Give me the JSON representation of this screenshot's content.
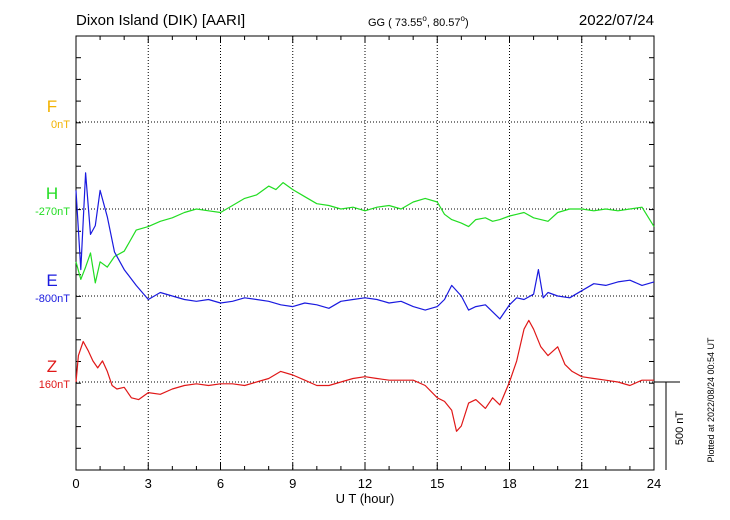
{
  "header": {
    "station": "Dixon Island (DIK)  [AARI]",
    "coords_prefix": "GG ( 73.55",
    "coords_mid": ",  80.57",
    "coords_suffix": ")",
    "date": "2022/07/24"
  },
  "footer_note": "Plotted at 2022/08/24 00:54 UT",
  "chart_data": {
    "type": "line",
    "xlabel": "U T (hour)",
    "xlim": [
      0,
      24
    ],
    "xticks": [
      "0",
      "3",
      "6",
      "9",
      "12",
      "15",
      "18",
      "21",
      "24"
    ],
    "scale_label": "500 nT",
    "grid": true,
    "series": [
      {
        "name": "F",
        "baseline": "0nT",
        "color": "#f2b200",
        "values": []
      },
      {
        "name": "H",
        "baseline": "-270nT",
        "color": "#22dd22",
        "x": [
          0,
          0.2,
          0.4,
          0.6,
          0.8,
          1.0,
          1.3,
          1.6,
          2.0,
          2.5,
          3.0,
          3.5,
          4.0,
          4.5,
          5.0,
          5.5,
          6.0,
          6.5,
          7.0,
          7.5,
          8.0,
          8.3,
          8.6,
          9.0,
          9.5,
          10.0,
          10.5,
          11.0,
          11.5,
          12.0,
          12.5,
          13.0,
          13.5,
          14.0,
          14.5,
          15.0,
          15.3,
          15.6,
          16.0,
          16.3,
          16.6,
          17.0,
          17.3,
          17.6,
          18.0,
          18.3,
          18.6,
          19.0,
          19.3,
          19.6,
          20.0,
          20.5,
          21.0,
          21.5,
          22.0,
          22.5,
          23.0,
          23.5,
          24.0
        ],
        "values": [
          -300,
          -400,
          -330,
          -250,
          -420,
          -300,
          -330,
          -270,
          -240,
          -120,
          -100,
          -70,
          -50,
          -20,
          0,
          -10,
          -20,
          20,
          60,
          80,
          130,
          110,
          150,
          110,
          70,
          30,
          20,
          0,
          10,
          -10,
          10,
          20,
          0,
          40,
          60,
          40,
          -30,
          -60,
          -80,
          -100,
          -60,
          -50,
          -70,
          -60,
          -40,
          -30,
          -20,
          -50,
          -60,
          -70,
          -20,
          0,
          0,
          -10,
          0,
          -10,
          0,
          10,
          -100
        ]
      },
      {
        "name": "E",
        "baseline": "-800nT",
        "color": "#1a1adf",
        "x": [
          0,
          0.2,
          0.4,
          0.6,
          0.8,
          1.0,
          1.3,
          1.6,
          2.0,
          2.5,
          3.0,
          3.5,
          4.0,
          4.5,
          5.0,
          5.5,
          6.0,
          6.5,
          7.0,
          7.5,
          8.0,
          8.5,
          9.0,
          9.5,
          10.0,
          10.5,
          11.0,
          11.5,
          12.0,
          12.5,
          13.0,
          13.5,
          14.0,
          14.5,
          15.0,
          15.3,
          15.6,
          16.0,
          16.3,
          16.6,
          17.0,
          17.3,
          17.6,
          18.0,
          18.3,
          18.6,
          19.0,
          19.2,
          19.4,
          19.6,
          20.0,
          20.5,
          21.0,
          21.5,
          22.0,
          22.5,
          23.0,
          23.5,
          24.0
        ],
        "values": [
          600,
          150,
          700,
          350,
          400,
          600,
          450,
          250,
          150,
          60,
          -20,
          20,
          0,
          -20,
          -30,
          -20,
          -40,
          -30,
          -10,
          -20,
          -30,
          -50,
          -60,
          -40,
          -50,
          -70,
          -30,
          -20,
          -10,
          -20,
          -40,
          -30,
          -60,
          -80,
          -60,
          -20,
          60,
          0,
          -80,
          -60,
          -50,
          -90,
          -130,
          -50,
          -10,
          -20,
          10,
          150,
          -10,
          20,
          0,
          -10,
          30,
          70,
          60,
          80,
          90,
          60,
          80
        ]
      },
      {
        "name": "Z",
        "baseline": "160nT",
        "color": "#e01818",
        "x": [
          0,
          0.1,
          0.3,
          0.5,
          0.7,
          0.9,
          1.1,
          1.3,
          1.5,
          1.7,
          2.0,
          2.3,
          2.6,
          3.0,
          3.5,
          4.0,
          4.5,
          5.0,
          5.5,
          6.0,
          6.5,
          7.0,
          7.5,
          8.0,
          8.5,
          9.0,
          9.5,
          10.0,
          10.5,
          11.0,
          11.5,
          12.0,
          12.5,
          13.0,
          13.5,
          14.0,
          14.5,
          15.0,
          15.3,
          15.6,
          15.8,
          16.0,
          16.3,
          16.6,
          17.0,
          17.3,
          17.6,
          18.0,
          18.3,
          18.6,
          18.8,
          19.0,
          19.3,
          19.6,
          20.0,
          20.3,
          20.6,
          21.0,
          21.5,
          22.0,
          22.5,
          23.0,
          23.5,
          24.0
        ],
        "values": [
          0,
          150,
          230,
          180,
          120,
          80,
          120,
          60,
          -20,
          -40,
          -30,
          -90,
          -100,
          -60,
          -70,
          -40,
          -20,
          -10,
          -20,
          -10,
          -10,
          -20,
          0,
          20,
          60,
          40,
          10,
          -20,
          -20,
          0,
          20,
          30,
          20,
          10,
          10,
          10,
          -20,
          -90,
          -110,
          -160,
          -280,
          -250,
          -120,
          -100,
          -150,
          -90,
          -130,
          0,
          120,
          300,
          350,
          300,
          200,
          150,
          200,
          100,
          60,
          30,
          20,
          10,
          0,
          -20,
          10,
          10
        ]
      }
    ]
  }
}
